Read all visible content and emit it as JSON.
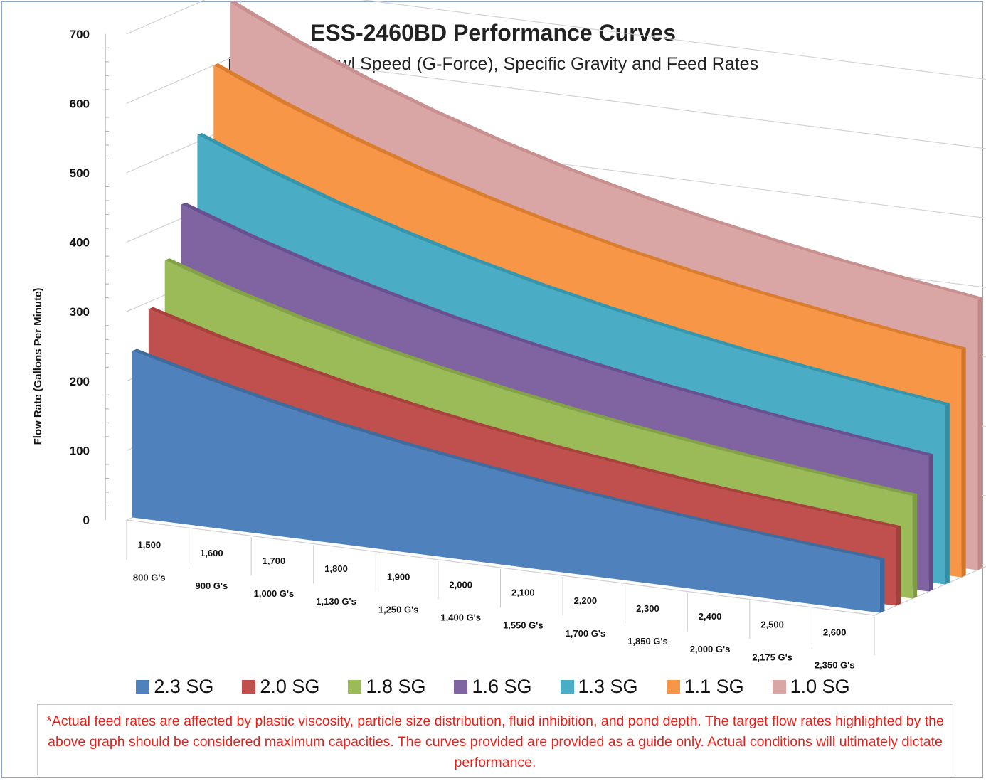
{
  "chart_data": {
    "type": "area",
    "title": "ESS-2460BD Performance Curves",
    "subtitle": "Relative to Bowl Speed (G-Force), Specific Gravity and Feed Rates",
    "ylabel": "Flow Rate (Gallons Per Minute)",
    "ylim": [
      0,
      700
    ],
    "yticks": [
      "0",
      "100",
      "200",
      "300",
      "400",
      "500",
      "600",
      "700"
    ],
    "categories": [
      {
        "rpm": "1,500",
        "g": "800 G's"
      },
      {
        "rpm": "1,600",
        "g": "900 G's"
      },
      {
        "rpm": "1,700",
        "g": "1,000 G's"
      },
      {
        "rpm": "1,800",
        "g": "1,130 G's"
      },
      {
        "rpm": "1,900",
        "g": "1,250 G's"
      },
      {
        "rpm": "2,000",
        "g": "1,400 G's"
      },
      {
        "rpm": "2,100",
        "g": "1,550 G's"
      },
      {
        "rpm": "2,200",
        "g": "1,700 G's"
      },
      {
        "rpm": "2,300",
        "g": "1,850 G's"
      },
      {
        "rpm": "2,400",
        "g": "2,000 G's"
      },
      {
        "rpm": "2,500",
        "g": "2,175 G's"
      },
      {
        "rpm": "2,600",
        "g": "2,350 G's"
      }
    ],
    "series": [
      {
        "name": "2.3 SG",
        "color": "#4f81bd",
        "side": "#3b6aa0",
        "top": "#3f6c9e",
        "values": [
          240,
          215,
          192,
          172,
          155,
          140,
          126,
          114,
          103,
          93,
          84,
          76
        ]
      },
      {
        "name": "2.0 SG",
        "color": "#c0504d",
        "side": "#a23e3b",
        "top": "#a9423f",
        "values": [
          290,
          262,
          238,
          216,
          197,
          180,
          165,
          152,
          140,
          130,
          121,
          112
        ]
      },
      {
        "name": "1.8 SG",
        "color": "#9bbb59",
        "side": "#7e9c42",
        "top": "#84a246",
        "values": [
          350,
          318,
          290,
          266,
          245,
          226,
          209,
          194,
          181,
          169,
          158,
          148
        ]
      },
      {
        "name": "1.6 SG",
        "color": "#8064a2",
        "side": "#654c86",
        "top": "#6a5090",
        "values": [
          420,
          386,
          356,
          330,
          306,
          285,
          266,
          249,
          234,
          220,
          207,
          195
        ]
      },
      {
        "name": "1.3 SG",
        "color": "#4bacc6",
        "side": "#2f8fa8",
        "top": "#3497b0",
        "values": [
          510,
          472,
          438,
          408,
          381,
          357,
          336,
          317,
          300,
          285,
          271,
          258
        ]
      },
      {
        "name": "1.1 SG",
        "color": "#f79646",
        "side": "#d2772a",
        "top": "#db7d2e",
        "values": [
          600,
          558,
          521,
          488,
          459,
          433,
          410,
          390,
          372,
          356,
          341,
          328
        ]
      },
      {
        "name": "1.0 SG",
        "color": "#d9a5a5",
        "side": "#c28888",
        "top": "#c99090",
        "values": [
          680,
          634,
          594,
          559,
          528,
          500,
          476,
          455,
          436,
          419,
          404,
          390
        ]
      }
    ],
    "grid": true,
    "legend_position": "bottom"
  },
  "footnote": "*Actual feed rates are affected by plastic viscosity, particle size distribution, fluid inhibition, and pond depth.   The target flow rates highlighted by the above graph should be considered maximum capacities.  The curves provided are provided as a guide only.   Actual conditions will ultimately dictate performance."
}
